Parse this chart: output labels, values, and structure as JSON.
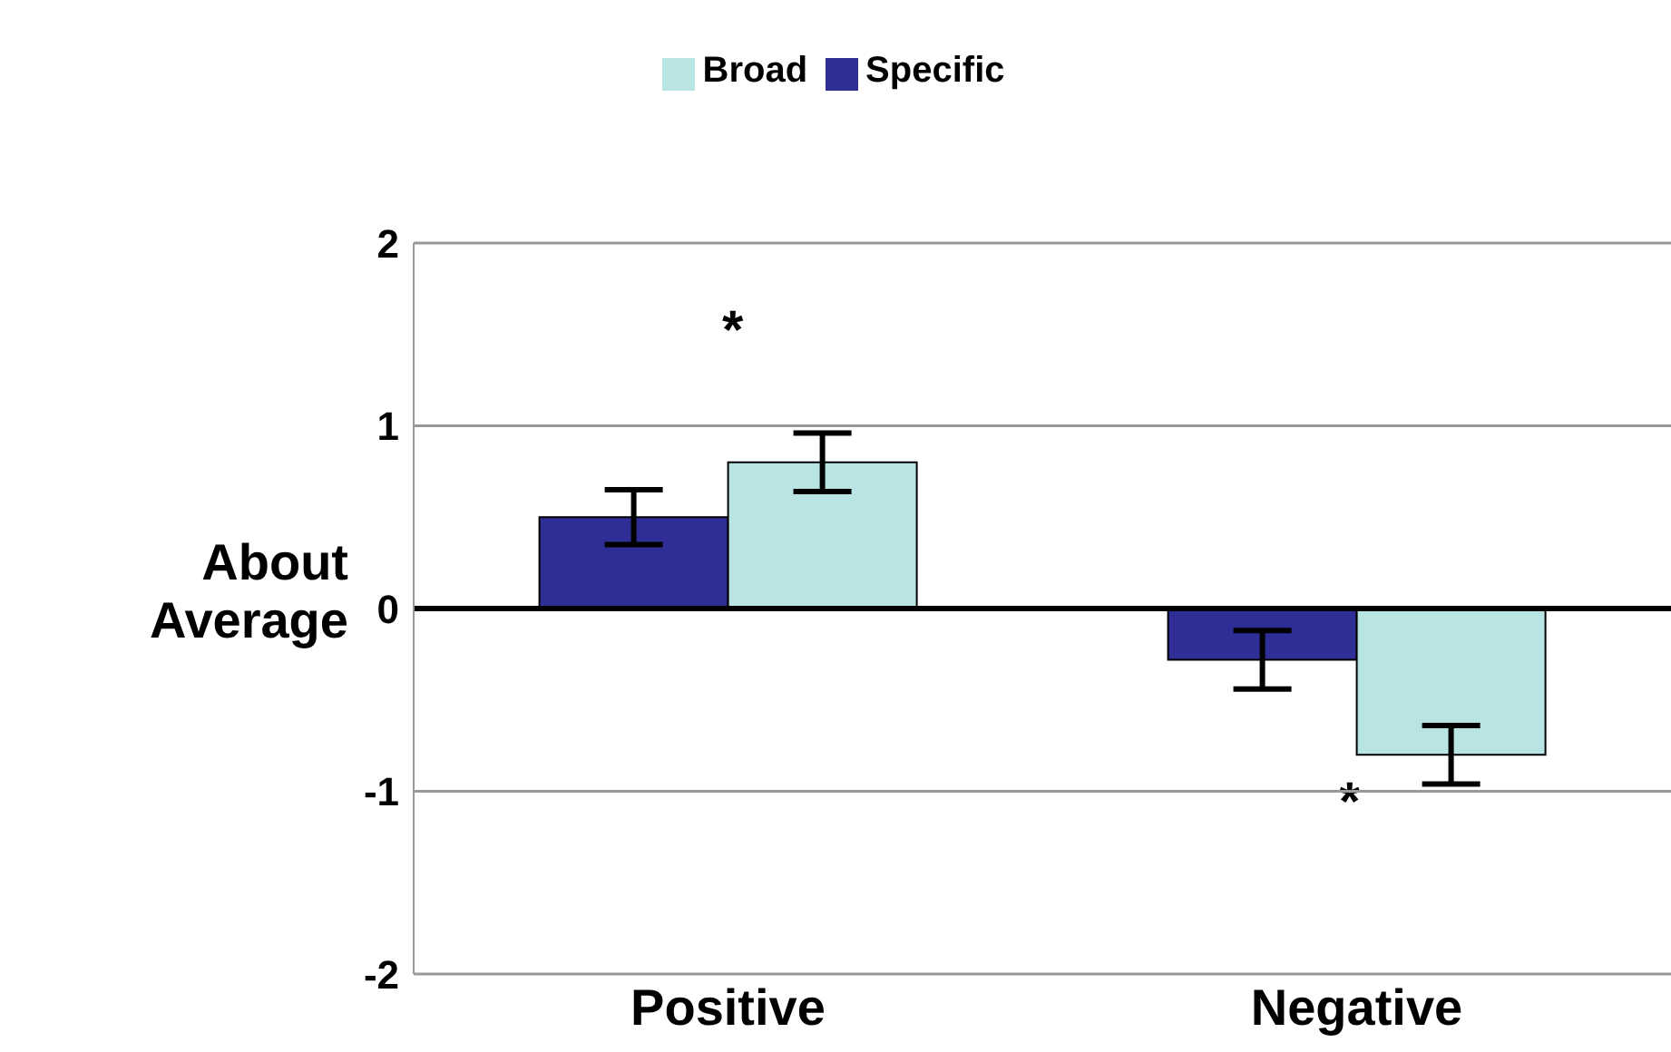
{
  "chart_data": {
    "type": "bar",
    "ylabel": "About Average",
    "categories": [
      "Positive",
      "Negative"
    ],
    "series": [
      {
        "name": "Specific",
        "color": "#2e2e96",
        "values": [
          0.5,
          -0.28
        ],
        "errors": [
          0.15,
          0.16
        ]
      },
      {
        "name": "Broad",
        "color": "#b8e4e4",
        "values": [
          0.8,
          -0.8
        ],
        "errors": [
          0.16,
          0.16
        ]
      }
    ],
    "ylim": [
      -2,
      2
    ],
    "yticks": [
      -2,
      -1,
      0,
      1,
      2
    ],
    "grid": "y",
    "legend": "top",
    "annotations": [
      "*",
      "*"
    ]
  }
}
